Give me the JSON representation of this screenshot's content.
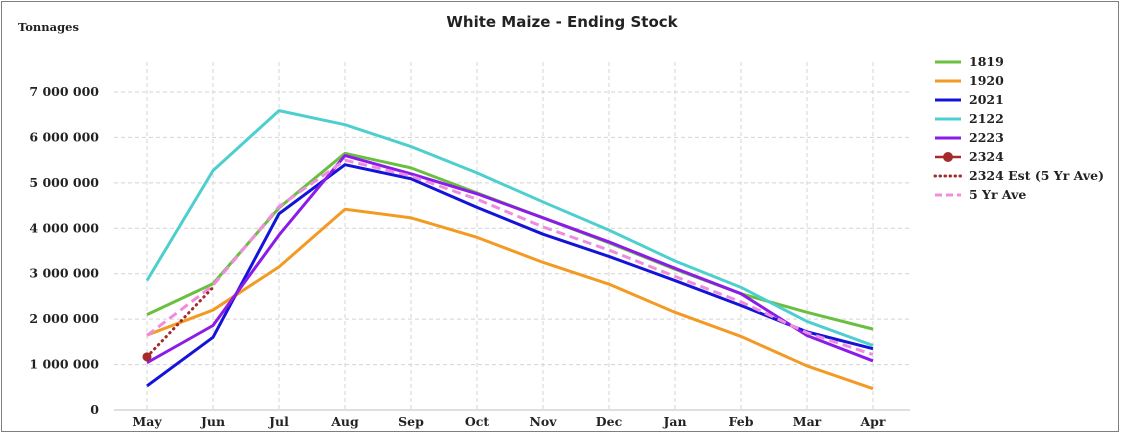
{
  "chart_data": {
    "type": "line",
    "title": "White Maize - Ending Stock",
    "ylabel": "Tonnages",
    "xlabel": "",
    "categories": [
      "May",
      "Jun",
      "Jul",
      "Aug",
      "Sep",
      "Oct",
      "Nov",
      "Dec",
      "Jan",
      "Feb",
      "Mar",
      "Apr"
    ],
    "ylim": [
      0,
      7000000
    ],
    "yticks": [
      0,
      1000000,
      2000000,
      3000000,
      4000000,
      5000000,
      6000000,
      7000000
    ],
    "ytick_labels": [
      "0",
      "1 000 000",
      "2 000 000",
      "3 000 000",
      "4 000 000",
      "5 000 000",
      "6 000 000",
      "7 000 000"
    ],
    "grid": true,
    "legend_position": "right",
    "series": [
      {
        "name": "1819",
        "color": "#6abf40",
        "style": "solid",
        "values": [
          2100000,
          2780000,
          4450000,
          5650000,
          5330000,
          4780000,
          4230000,
          3680000,
          3100000,
          2560000,
          2150000,
          1780000
        ]
      },
      {
        "name": "1920",
        "color": "#f39a24",
        "style": "solid",
        "values": [
          1650000,
          2200000,
          3150000,
          4420000,
          4230000,
          3800000,
          3250000,
          2770000,
          2150000,
          1620000,
          970000,
          470000
        ]
      },
      {
        "name": "2021",
        "color": "#1414d8",
        "style": "solid",
        "values": [
          530000,
          1600000,
          4320000,
          5400000,
          5090000,
          4460000,
          3870000,
          3380000,
          2850000,
          2300000,
          1720000,
          1350000
        ]
      },
      {
        "name": "2122",
        "color": "#4dcfcf",
        "style": "solid",
        "values": [
          2850000,
          5270000,
          6590000,
          6280000,
          5800000,
          5220000,
          4580000,
          3960000,
          3280000,
          2700000,
          1950000,
          1420000
        ]
      },
      {
        "name": "2223",
        "color": "#8b1be8",
        "style": "solid",
        "values": [
          1040000,
          1860000,
          3850000,
          5600000,
          5200000,
          4760000,
          4230000,
          3700000,
          3120000,
          2560000,
          1640000,
          1080000
        ]
      },
      {
        "name": "2324",
        "color": "#a52a2a",
        "style": "marker",
        "values": [
          1170000,
          null,
          null,
          null,
          null,
          null,
          null,
          null,
          null,
          null,
          null,
          null
        ]
      },
      {
        "name": "2324 Est (5 Yr Ave)",
        "color": "#a52a2a",
        "style": "dotted",
        "values": [
          1170000,
          2700000,
          null,
          null,
          null,
          null,
          null,
          null,
          null,
          null,
          null,
          null
        ]
      },
      {
        "name": "5 Yr Ave",
        "color": "#f08ce0",
        "style": "dashed",
        "values": [
          1640000,
          2740000,
          4480000,
          5500000,
          5150000,
          4640000,
          4030000,
          3520000,
          2940000,
          2380000,
          1700000,
          1220000
        ]
      }
    ]
  }
}
